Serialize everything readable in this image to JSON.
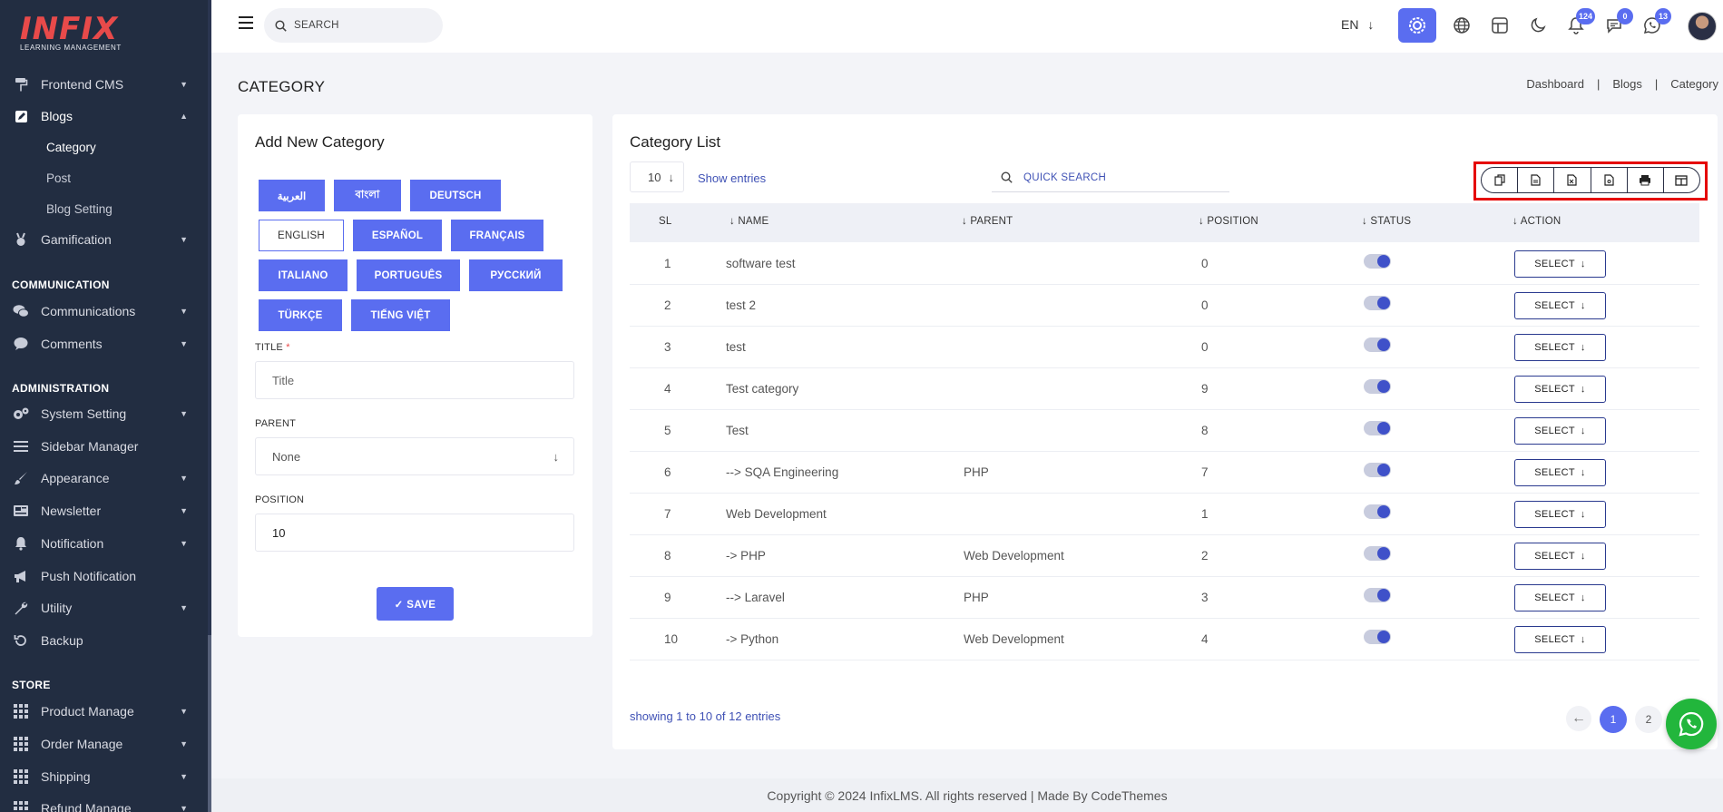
{
  "brand": {
    "logo": "INFIX",
    "tagline": "LEARNING MANAGEMENT"
  },
  "sidebar": {
    "items": [
      {
        "label": "Frontend CMS",
        "icon": "paint-roller-icon"
      },
      {
        "label": "Blogs",
        "icon": "edit-square-icon"
      },
      {
        "label": "Gamification",
        "icon": "medal-icon"
      },
      {
        "label": "Communications",
        "icon": "chat-bubbles-icon"
      },
      {
        "label": "Comments",
        "icon": "comment-icon"
      },
      {
        "label": "System Setting",
        "icon": "gears-icon"
      },
      {
        "label": "Sidebar Manager",
        "icon": "bars-icon"
      },
      {
        "label": "Appearance",
        "icon": "paint-brush-icon"
      },
      {
        "label": "Newsletter",
        "icon": "newsletter-icon"
      },
      {
        "label": "Notification",
        "icon": "bell-icon"
      },
      {
        "label": "Push Notification",
        "icon": "megaphone-icon"
      },
      {
        "label": "Utility",
        "icon": "wrench-icon"
      },
      {
        "label": "Backup",
        "icon": "history-icon"
      },
      {
        "label": "Product Manage",
        "icon": "grid-icon"
      },
      {
        "label": "Order Manage",
        "icon": "grid-icon"
      },
      {
        "label": "Shipping",
        "icon": "grid-icon"
      },
      {
        "label": "Refund Manage",
        "icon": "grid-icon"
      }
    ],
    "sub_items": [
      "Category",
      "Post",
      "Blog Setting"
    ],
    "sections": [
      "COMMUNICATION",
      "ADMINISTRATION",
      "STORE"
    ]
  },
  "topbar": {
    "search_placeholder": "SEARCH",
    "language": "EN",
    "notification_count": "124",
    "message_count": "0",
    "chat_count": "13"
  },
  "page": {
    "title": "CATEGORY",
    "breadcrumb": [
      "Dashboard",
      "|",
      "Blogs",
      "|",
      "Category"
    ]
  },
  "form": {
    "title": "Add New Category",
    "languages": [
      "العربية",
      "বাংলা",
      "DEUTSCH",
      "ENGLISH",
      "ESPAÑOL",
      "FRANÇAIS",
      "ITALIANO",
      "PORTUGUÊS",
      "РУССКИЙ",
      "TÜRKÇE",
      "TIẾNG VIỆT"
    ],
    "selected_language": "ENGLISH",
    "title_label": "TITLE",
    "title_required_mark": "*",
    "title_placeholder": "Title",
    "parent_label": "PARENT",
    "parent_value": "None",
    "position_label": "POSITION",
    "position_value": "10",
    "save_label": "✓ SAVE"
  },
  "list": {
    "title": "Category List",
    "entries_value": "10",
    "show_entries_label": "Show entries",
    "quick_search_placeholder": "QUICK SEARCH",
    "export_buttons": [
      "copy-icon",
      "csv-file-icon",
      "excel-file-icon",
      "pdf-file-icon",
      "print-icon",
      "columns-icon"
    ],
    "columns": [
      "SL",
      "NAME",
      "PARENT",
      "POSITION",
      "STATUS",
      "ACTION"
    ],
    "rows": [
      {
        "sl": "1",
        "name": "software test",
        "parent": "",
        "position": "0",
        "status": true
      },
      {
        "sl": "2",
        "name": "test 2",
        "parent": "",
        "position": "0",
        "status": true
      },
      {
        "sl": "3",
        "name": "test",
        "parent": "",
        "position": "0",
        "status": true
      },
      {
        "sl": "4",
        "name": "Test category",
        "parent": "",
        "position": "9",
        "status": true
      },
      {
        "sl": "5",
        "name": "Test",
        "parent": "",
        "position": "8",
        "status": true
      },
      {
        "sl": "6",
        "name": "--> SQA Engineering",
        "parent": "PHP",
        "position": "7",
        "status": true
      },
      {
        "sl": "7",
        "name": "Web Development",
        "parent": "",
        "position": "1",
        "status": true
      },
      {
        "sl": "8",
        "name": "-> PHP",
        "parent": "Web Development",
        "position": "2",
        "status": true
      },
      {
        "sl": "9",
        "name": "--> Laravel",
        "parent": "PHP",
        "position": "3",
        "status": true
      },
      {
        "sl": "10",
        "name": "-> Python",
        "parent": "Web Development",
        "position": "4",
        "status": true
      }
    ],
    "action_label": "SELECT",
    "showing_text": "showing 1 to 10 of 12 entries",
    "pages": [
      "1",
      "2"
    ],
    "current_page": "1"
  },
  "footer": {
    "text": "Copyright © 2024 InfixLMS. All rights reserved | Made By CodeThemes"
  },
  "colors": {
    "accent": "#5a6df0",
    "sidebar_bg": "#222d41",
    "highlight": "#e50000",
    "whatsapp": "#22b63c"
  }
}
